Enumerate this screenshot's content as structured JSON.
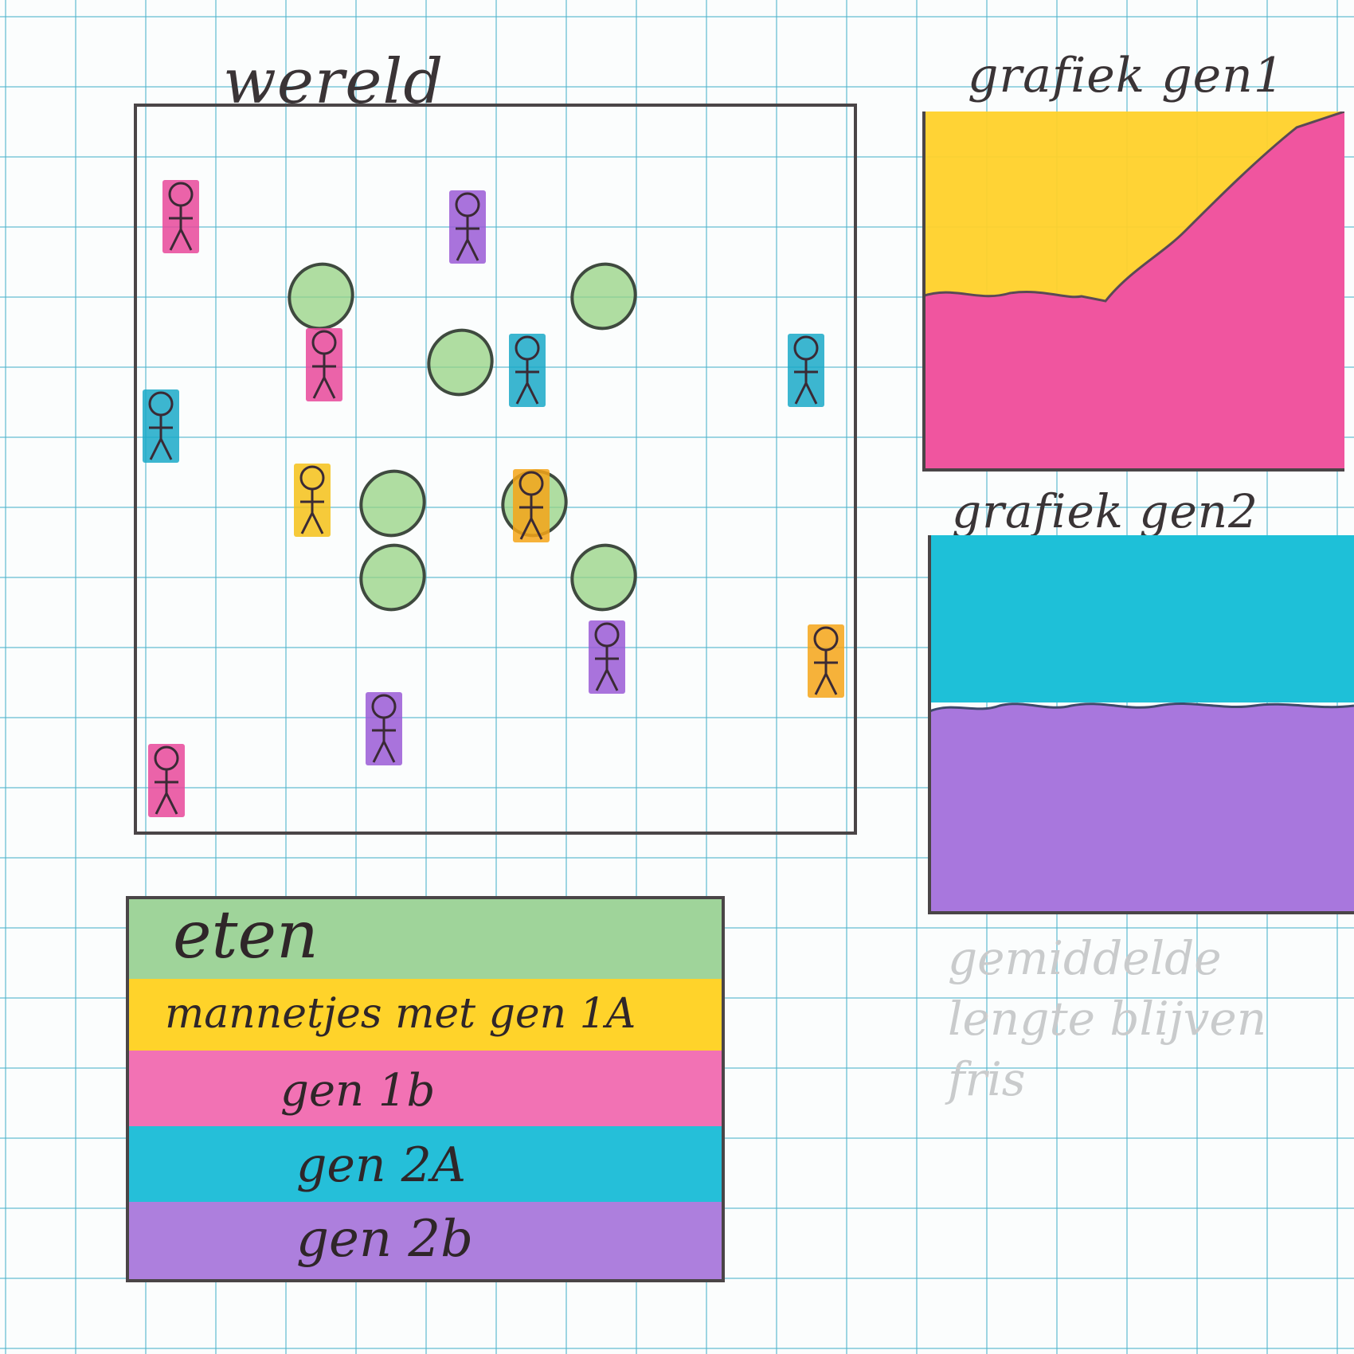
{
  "world": {
    "title": "wereld",
    "people": [
      {
        "color": "#e8489a"
      },
      {
        "color": "#9a5ad6"
      },
      {
        "color": "#e8489a"
      },
      {
        "color": "#1aa9c8"
      },
      {
        "color": "#1aa9c8"
      },
      {
        "color": "#1aa9c8"
      },
      {
        "color": "#f5c118"
      },
      {
        "color": "#f5a418"
      },
      {
        "color": "#9a5ad6"
      },
      {
        "color": "#f5a418"
      },
      {
        "color": "#9a5ad6"
      },
      {
        "color": "#e8489a"
      }
    ],
    "food_count": 7
  },
  "graph_gen1": {
    "title": "grafiek gen1",
    "colors": {
      "top": "#ffd12a",
      "bottom": "#f0559f"
    }
  },
  "graph_gen2": {
    "title": "grafiek gen2",
    "colors": {
      "top": "#1ec0d8",
      "bottom": "#a877dd"
    }
  },
  "legend": {
    "rows": [
      {
        "label": "eten",
        "color": "#9fd49a"
      },
      {
        "label": "mannetjes met gen 1A",
        "color": "#ffd32a"
      },
      {
        "label": "gen 1b",
        "color": "#f272b4"
      },
      {
        "label": "gen 2A",
        "color": "#25bfd9"
      },
      {
        "label": "gen 2b",
        "color": "#ad7fdd"
      }
    ]
  },
  "faded_note": "gemiddelde lengte blijven fris"
}
